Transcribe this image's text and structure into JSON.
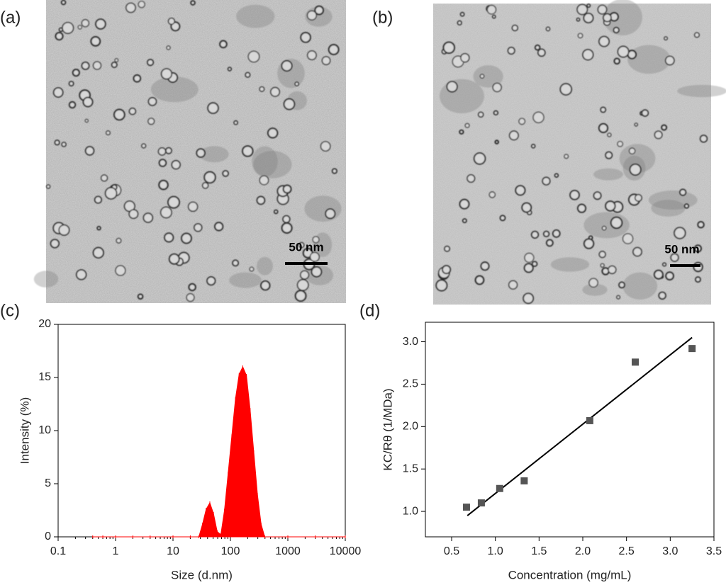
{
  "images": [
    {
      "panel_label": "(a)",
      "scale_bar": "50 nm"
    },
    {
      "panel_label": "(b)",
      "scale_bar": "50 nm"
    }
  ],
  "chart_data": [
    {
      "type": "area",
      "panel_label": "(c)",
      "xlabel": "Size (d.nm)",
      "ylabel": "Intensity (%)",
      "xscale": "log",
      "color": "#ff0000",
      "xlim": [
        0.1,
        10000
      ],
      "xticks": [
        0.1,
        1,
        10,
        100,
        1000,
        10000
      ],
      "ylim": [
        0,
        20
      ],
      "yticks": [
        0,
        5,
        10,
        15,
        20
      ],
      "x": [
        0.4,
        0.6,
        1,
        2,
        4,
        10,
        20,
        28.2,
        32.7,
        37.8,
        43.8,
        50.7,
        58.8,
        68.1,
        78.8,
        91.3,
        105.7,
        122.4,
        141.8,
        164.2,
        190.1,
        220.2,
        255,
        295.3,
        342,
        396.1,
        1000,
        3000,
        10000
      ],
      "values": [
        0,
        0,
        0,
        0,
        0,
        0,
        0,
        0,
        1.2,
        2.6,
        3.2,
        2.2,
        0.5,
        0.2,
        2.5,
        6.0,
        9.5,
        13.0,
        15.3,
        16.0,
        15.2,
        12.0,
        8.0,
        4.0,
        1.2,
        0,
        0,
        0,
        0
      ]
    },
    {
      "type": "scatter",
      "panel_label": "(d)",
      "xlabel": "Concentration (mg/mL)",
      "ylabel": "KC/Rθ (1/MDa)",
      "color": "#555555",
      "line_color": "#000000",
      "xlim": [
        0.2,
        3.5
      ],
      "xticks": [
        0.5,
        {
          "value": 1,
          "label": "1.0"
        },
        1.5,
        {
          "value": 2,
          "label": "2.0"
        },
        2.5,
        {
          "value": 3,
          "label": "3.0"
        },
        3.5
      ],
      "ylim": [
        0.7,
        3.23
      ],
      "yticks": [
        {
          "value": 1,
          "label": "1.0"
        },
        1.5,
        {
          "value": 2,
          "label": "2.0"
        },
        2.5,
        {
          "value": 3,
          "label": "3.0"
        }
      ],
      "x": [
        0.67,
        0.84,
        1.05,
        1.33,
        2.08,
        2.6,
        3.25
      ],
      "values": [
        1.05,
        1.1,
        1.27,
        1.36,
        2.07,
        2.76,
        2.92
      ],
      "fit_line": {
        "x": [
          0.68,
          3.25
        ],
        "y": [
          0.95,
          3.05
        ]
      }
    }
  ]
}
